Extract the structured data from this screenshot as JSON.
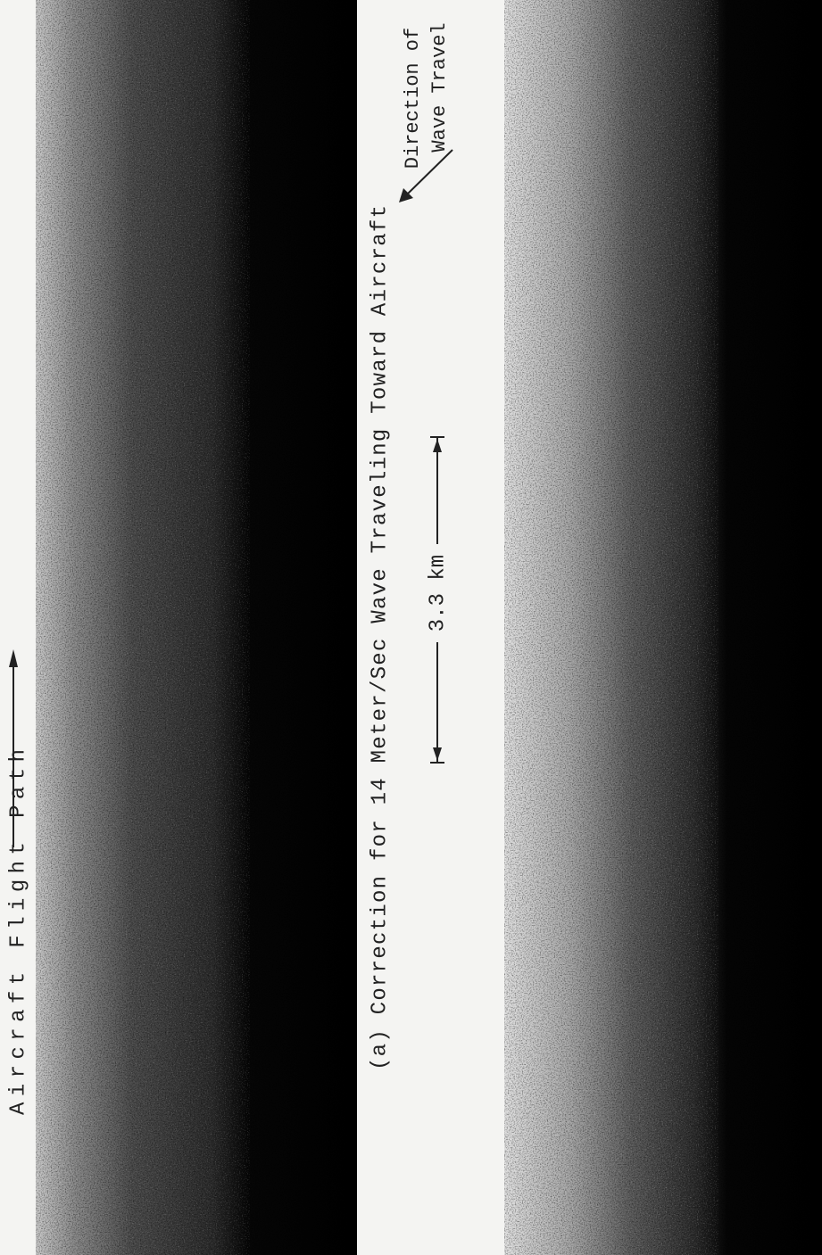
{
  "labels": {
    "flight_path": "Aircraft Flight Path",
    "caption": "(a)  Correction for 14 Meter/Sec Wave Traveling Toward Aircraft",
    "scale": "3.3 km",
    "direction": [
      "Direction of",
      "Wave Travel"
    ]
  }
}
